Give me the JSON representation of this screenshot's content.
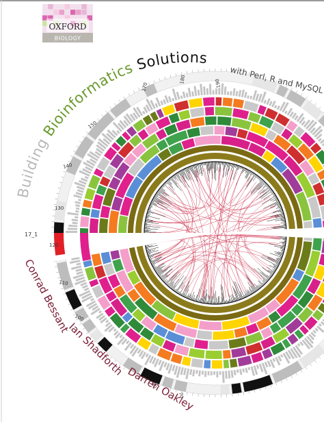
{
  "publisher": {
    "name": "OXFORD",
    "series": "BIOLOGY"
  },
  "title": {
    "word1": "Building",
    "word2": "Bioinformatics",
    "word3": "Solutions",
    "subtitle": "with Perl, R and MySQL"
  },
  "authors": [
    "Conrad Bessant",
    "Ian Shadforth",
    "Darren Oakley"
  ],
  "scale_labels": {
    "l170": "170",
    "l180": "180",
    "l190": "190",
    "l150": "150",
    "l140": "140",
    "l130": "130",
    "l120": "120",
    "l110": "110",
    "l100": "100",
    "l80": "80",
    "l70": "70",
    "l17_1": "17_1"
  },
  "colors": {
    "title_grey": "#b9b9b9",
    "title_green": "#6a9a2c",
    "title_black": "#111111",
    "author_maroon": "#7a1d35",
    "link_red": "#c8223f",
    "outer_grey": "#d9d9d9",
    "band_black": "#111111"
  },
  "palette": [
    "#e0208c",
    "#8ac43f",
    "#d8208a",
    "#f39fc9",
    "#cf2f2f",
    "#9acd32",
    "#6b7b1a",
    "#a13c9a",
    "#3fa24c",
    "#ffd400",
    "#f47b20",
    "#5a8fd8",
    "#c9c9c9",
    "#2f8a3a"
  ]
}
